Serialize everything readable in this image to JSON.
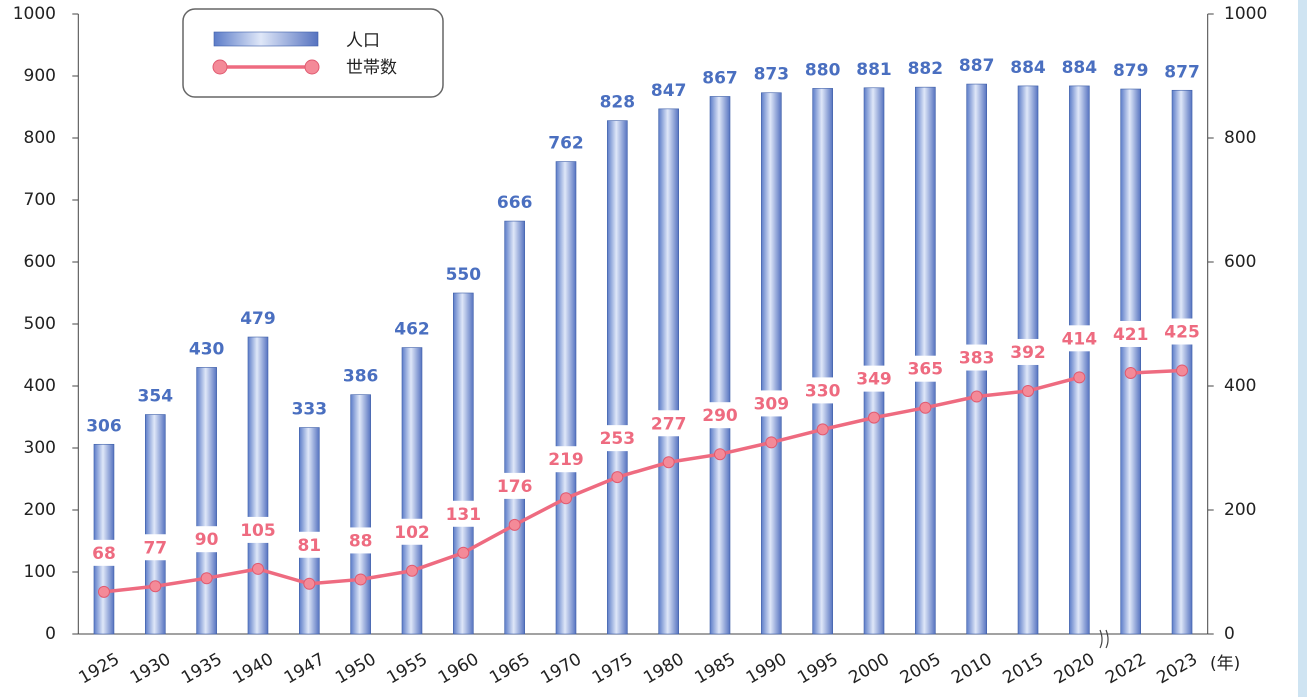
{
  "chart_data": {
    "type": "bar-line",
    "categories": [
      "1925",
      "1930",
      "1935",
      "1940",
      "1947",
      "1950",
      "1955",
      "1960",
      "1965",
      "1970",
      "1975",
      "1980",
      "1985",
      "1990",
      "1995",
      "2000",
      "2005",
      "2010",
      "2015",
      "2020",
      "2022",
      "2023"
    ],
    "series": [
      {
        "name": "人口",
        "type": "bar",
        "color": "#4a6fc0",
        "values": [
          306,
          354,
          430,
          479,
          333,
          386,
          462,
          550,
          666,
          762,
          828,
          847,
          867,
          873,
          880,
          881,
          882,
          887,
          884,
          884,
          879,
          877
        ]
      },
      {
        "name": "世帯数",
        "type": "line",
        "axis": "y2",
        "color": "#ee6b80",
        "values": [
          68,
          77,
          90,
          105,
          81,
          88,
          102,
          131,
          176,
          219,
          253,
          277,
          290,
          309,
          330,
          349,
          365,
          383,
          392,
          414,
          421,
          425
        ]
      }
    ],
    "ylim": [
      0,
      1000
    ],
    "yticks": [
      0,
      100,
      200,
      300,
      400,
      500,
      600,
      700,
      800,
      900,
      1000
    ],
    "y2lim": [
      0,
      1000
    ],
    "y2ticks": [
      0,
      200,
      400,
      600,
      800,
      1000
    ],
    "x_unit": "(年)",
    "legend": "top-left"
  }
}
